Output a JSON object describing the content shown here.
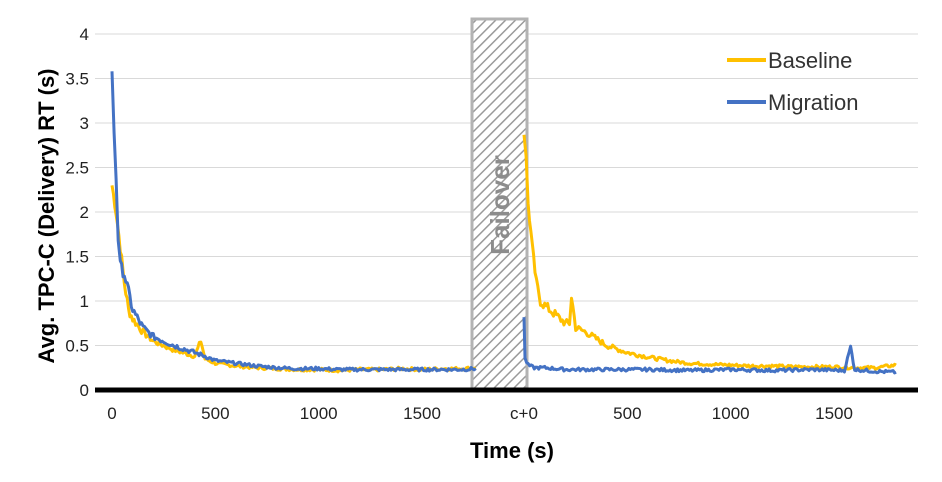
{
  "chart_data": {
    "type": "line",
    "xlabel": "Time (s)",
    "ylabel": "Avg. TPC-C (Delivery) RT (s)",
    "ylim": [
      0,
      4
    ],
    "yticks": [
      "0",
      "0.5",
      "1",
      "1.5",
      "2",
      "2.5",
      "3",
      "3.5",
      "4"
    ],
    "xticks_left": [
      "0",
      "500",
      "1000",
      "1500"
    ],
    "xtick_center": "c+0",
    "xticks_right": [
      "500",
      "1000",
      "1500"
    ],
    "failover_label": "Failover",
    "grid": "horizontal",
    "legend_position": "top-right",
    "colors": {
      "Baseline": "#FFC000",
      "Migration": "#4472C4",
      "failover_box": "#bfbfbf"
    },
    "series": [
      {
        "name": "Baseline",
        "x": [
          0,
          20,
          40,
          60,
          80,
          100,
          150,
          200,
          300,
          400,
          430,
          450,
          500,
          600,
          700,
          800,
          900,
          1000,
          1100,
          1200,
          1300,
          1400,
          1500,
          1600,
          1700,
          1760,
          "c+0",
          "c+10",
          "c+20",
          "c+40",
          "c+60",
          "c+80",
          "c+100",
          "c+150",
          "c+200",
          "c+220",
          "c+230",
          "c+250",
          "c+300",
          "c+400",
          "c+500",
          "c+600",
          "c+700",
          "c+800",
          "c+900",
          "c+1000",
          "c+1100",
          "c+1200",
          "c+1300",
          "c+1400",
          "c+1500",
          "c+1600",
          "c+1700",
          "c+1800"
        ],
        "values": [
          2.3,
          2.0,
          1.6,
          1.2,
          0.9,
          0.8,
          0.65,
          0.55,
          0.45,
          0.38,
          0.55,
          0.35,
          0.3,
          0.27,
          0.25,
          0.24,
          0.23,
          0.23,
          0.22,
          0.23,
          0.23,
          0.24,
          0.23,
          0.24,
          0.24,
          0.25,
          2.9,
          2.6,
          2.1,
          1.6,
          1.2,
          1.0,
          0.95,
          0.85,
          0.75,
          0.75,
          1.05,
          0.7,
          0.65,
          0.5,
          0.42,
          0.37,
          0.33,
          0.3,
          0.29,
          0.28,
          0.27,
          0.27,
          0.26,
          0.26,
          0.26,
          0.25,
          0.25,
          0.28
        ]
      },
      {
        "name": "Migration",
        "x": [
          0,
          10,
          20,
          30,
          40,
          60,
          80,
          100,
          150,
          200,
          300,
          400,
          450,
          500,
          600,
          700,
          800,
          900,
          1000,
          1100,
          1200,
          1300,
          1400,
          1500,
          1600,
          1700,
          1760,
          "c+0",
          "c+5",
          "c+20",
          "c+50",
          "c+100",
          "c+200",
          "c+400",
          "c+600",
          "c+800",
          "c+1000",
          "c+1200",
          "c+1400",
          "c+1550",
          "c+1580",
          "c+1600",
          "c+1700",
          "c+1800"
        ],
        "values": [
          3.6,
          2.9,
          2.4,
          1.7,
          1.4,
          1.3,
          1.1,
          0.9,
          0.7,
          0.6,
          0.5,
          0.42,
          0.38,
          0.33,
          0.3,
          0.27,
          0.25,
          0.24,
          0.24,
          0.23,
          0.23,
          0.23,
          0.23,
          0.23,
          0.23,
          0.23,
          0.24,
          0.82,
          0.35,
          0.28,
          0.25,
          0.25,
          0.23,
          0.23,
          0.23,
          0.22,
          0.23,
          0.22,
          0.23,
          0.22,
          0.48,
          0.23,
          0.21,
          0.2
        ]
      }
    ]
  }
}
